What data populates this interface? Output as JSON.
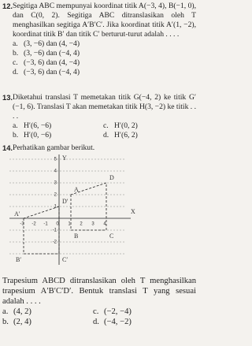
{
  "q12": {
    "number": "12.",
    "text": "Segitiga ABC mempunyai koordinat titik A(−3, 4), B(−1, 0), dan C(0, 2). Segitiga ABC ditranslasikan oleh T menghasilkan segitiga A′B′C′. Jika koordinat titik A′(1, −2), koordinat titik B′ dan titik C′ berturut-turut adalah . . . .",
    "options": [
      {
        "letter": "a.",
        "text": "(3, −6) dan (4, −4)"
      },
      {
        "letter": "b.",
        "text": "(3, −6) dan (−4, 4)"
      },
      {
        "letter": "c.",
        "text": "(−3, 6) dan (4, −4)"
      },
      {
        "letter": "d.",
        "text": "(−3, 6) dan (−4, 4)"
      }
    ]
  },
  "q13": {
    "number": "13.",
    "text": "Diketahui translasi T memetakan titik G(−4, 2) ke titik G′(−1, 6). Translasi T akan memetakan titik H(3, −2) ke titik . . . .",
    "options": [
      {
        "letter": "a.",
        "text": "H′(6, −6)"
      },
      {
        "letter": "b.",
        "text": "H′(0, −6)"
      },
      {
        "letter": "c.",
        "text": "H′(0, 2)"
      },
      {
        "letter": "d.",
        "text": "H′(6, 2)"
      }
    ]
  },
  "q14": {
    "number": "14.",
    "intro": "Perhatikan gambar berikut.",
    "graph": {
      "x_label": "X",
      "y_label": "Y",
      "xticks": [
        -3,
        -2,
        -1,
        0,
        1,
        2,
        3,
        4
      ],
      "yticks": [
        5,
        4,
        3,
        2,
        1,
        -1,
        -2
      ],
      "points": {
        "A": "A",
        "B": "B",
        "C": "C",
        "D": "D",
        "A1": "A′",
        "B1": "B′",
        "C1": "C′",
        "D1": "D′"
      }
    },
    "text": "Trapesium ABCD ditranslasikan oleh T menghasilkan trapesium A′B′C′D′. Bentuk translasi T yang sesuai adalah . . . .",
    "options": [
      {
        "letter": "a.",
        "text": "(4, 2)"
      },
      {
        "letter": "b.",
        "text": "(2, 4)"
      },
      {
        "letter": "c.",
        "text": "(−2, −4)"
      },
      {
        "letter": "d.",
        "text": "(−4, −2)"
      }
    ]
  }
}
